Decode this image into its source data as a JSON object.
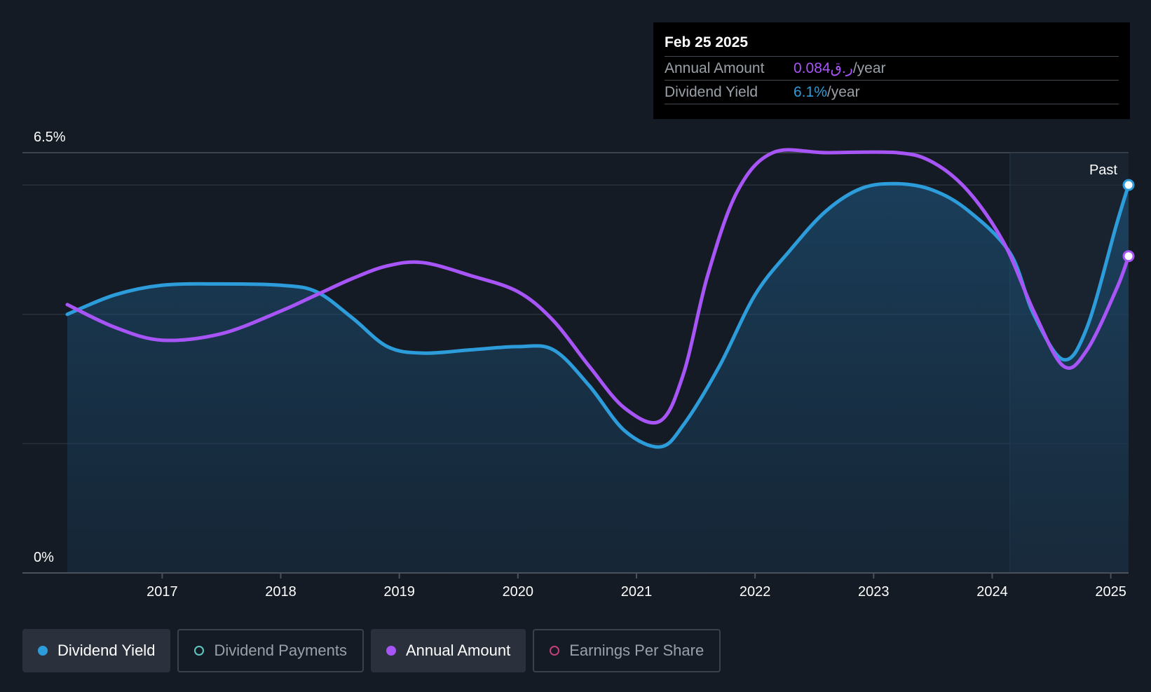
{
  "tooltip": {
    "date": "Feb 25 2025",
    "annual_label": "Annual Amount",
    "annual_value": "0.084ر.ق",
    "annual_unit": "/year",
    "yield_label": "Dividend Yield",
    "yield_value": "6.1%",
    "yield_unit": "/year"
  },
  "past_label": "Past",
  "legend": [
    {
      "label": "Dividend Yield",
      "color": "#2d9cdb",
      "active": true,
      "filled": true
    },
    {
      "label": "Dividend Payments",
      "color": "#5ec8c0",
      "active": false,
      "filled": false
    },
    {
      "label": "Annual Amount",
      "color": "#a855f7",
      "active": true,
      "filled": true
    },
    {
      "label": "Earnings Per Share",
      "color": "#c2407a",
      "active": false,
      "filled": false
    }
  ],
  "colors": {
    "background": "#151b24",
    "yield": "#2d9cdb",
    "annual": "#a855f7"
  },
  "chart_data": {
    "type": "line",
    "y_tick_labels": [
      "0%",
      "6.5%"
    ],
    "ylim": [
      0,
      6.5
    ],
    "xlim": [
      2016.2,
      2025.15
    ],
    "x_ticks": [
      2017,
      2018,
      2019,
      2020,
      2021,
      2022,
      2023,
      2024,
      2025
    ],
    "x_tick_labels": [
      "2017",
      "2018",
      "2019",
      "2020",
      "2021",
      "2022",
      "2023",
      "2024",
      "2025"
    ],
    "grid": true,
    "past_region_start": 2024.15,
    "series": [
      {
        "name": "Dividend Yield",
        "color": "#2d9cdb",
        "filled": true,
        "points": [
          [
            2016.2,
            4.0
          ],
          [
            2016.6,
            4.3
          ],
          [
            2017.0,
            4.45
          ],
          [
            2017.5,
            4.47
          ],
          [
            2018.0,
            4.45
          ],
          [
            2018.3,
            4.35
          ],
          [
            2018.6,
            3.95
          ],
          [
            2018.9,
            3.5
          ],
          [
            2019.2,
            3.4
          ],
          [
            2019.6,
            3.45
          ],
          [
            2020.0,
            3.5
          ],
          [
            2020.3,
            3.45
          ],
          [
            2020.6,
            2.9
          ],
          [
            2020.9,
            2.2
          ],
          [
            2021.2,
            1.95
          ],
          [
            2021.4,
            2.3
          ],
          [
            2021.7,
            3.2
          ],
          [
            2022.0,
            4.3
          ],
          [
            2022.3,
            5.0
          ],
          [
            2022.6,
            5.6
          ],
          [
            2022.9,
            5.95
          ],
          [
            2023.2,
            6.02
          ],
          [
            2023.5,
            5.92
          ],
          [
            2023.8,
            5.6
          ],
          [
            2024.15,
            4.95
          ],
          [
            2024.35,
            4.0
          ],
          [
            2024.6,
            3.3
          ],
          [
            2024.8,
            3.8
          ],
          [
            2025.05,
            5.4
          ],
          [
            2025.15,
            6.0
          ]
        ]
      },
      {
        "name": "Annual Amount",
        "color": "#a855f7",
        "filled": false,
        "points": [
          [
            2016.2,
            4.15
          ],
          [
            2016.6,
            3.8
          ],
          [
            2017.0,
            3.6
          ],
          [
            2017.5,
            3.7
          ],
          [
            2018.0,
            4.05
          ],
          [
            2018.3,
            4.3
          ],
          [
            2018.6,
            4.55
          ],
          [
            2018.9,
            4.75
          ],
          [
            2019.2,
            4.8
          ],
          [
            2019.6,
            4.6
          ],
          [
            2020.0,
            4.35
          ],
          [
            2020.3,
            3.9
          ],
          [
            2020.6,
            3.2
          ],
          [
            2020.9,
            2.55
          ],
          [
            2021.2,
            2.35
          ],
          [
            2021.4,
            3.1
          ],
          [
            2021.6,
            4.6
          ],
          [
            2021.85,
            5.9
          ],
          [
            2022.15,
            6.5
          ],
          [
            2022.6,
            6.5
          ],
          [
            2023.2,
            6.5
          ],
          [
            2023.5,
            6.35
          ],
          [
            2023.8,
            5.9
          ],
          [
            2024.1,
            5.1
          ],
          [
            2024.35,
            4.05
          ],
          [
            2024.6,
            3.2
          ],
          [
            2024.8,
            3.45
          ],
          [
            2025.05,
            4.4
          ],
          [
            2025.15,
            4.9
          ]
        ]
      }
    ]
  }
}
